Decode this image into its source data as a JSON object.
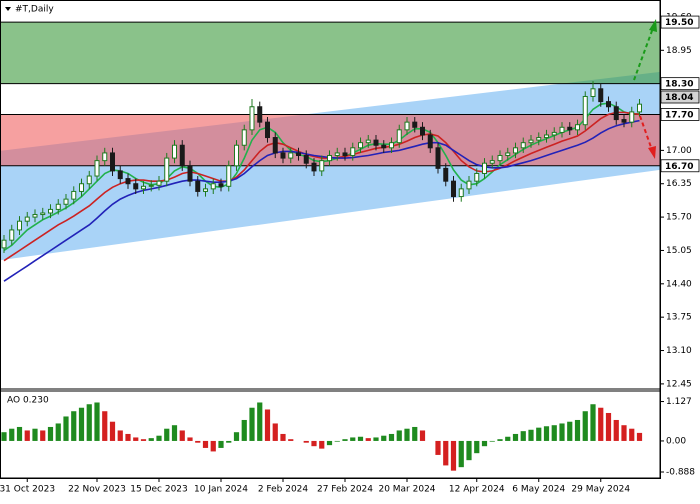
{
  "chart_data": {
    "type": "candlestick",
    "title": "#T,Daily",
    "dates": [
      null,
      null,
      null,
      "31 Oct 2023",
      null,
      null,
      null,
      null,
      null,
      null,
      null,
      null,
      "22 Nov 2023",
      null,
      null,
      null,
      null,
      null,
      null,
      null,
      "15 Dec 2023",
      null,
      null,
      null,
      null,
      null,
      null,
      null,
      "10 Jan 2024",
      null,
      null,
      null,
      null,
      null,
      null,
      null,
      "2 Feb 2024",
      null,
      null,
      null,
      null,
      null,
      null,
      null,
      "27 Feb 2024",
      null,
      null,
      null,
      null,
      null,
      null,
      null,
      "20 Mar 2024",
      null,
      null,
      null,
      null,
      null,
      null,
      null,
      null,
      "12 Apr 2024",
      null,
      null,
      null,
      null,
      null,
      null,
      null,
      "6 May 2024",
      null,
      null,
      null,
      null,
      null,
      null,
      null,
      "29 May 2024",
      null,
      null,
      null,
      null,
      null
    ],
    "ohlc": [
      [
        15.1,
        15.35,
        15.0,
        15.25
      ],
      [
        15.25,
        15.55,
        15.15,
        15.45
      ],
      [
        15.45,
        15.72,
        15.35,
        15.62
      ],
      [
        15.62,
        15.8,
        15.52,
        15.7
      ],
      [
        15.7,
        15.85,
        15.6,
        15.75
      ],
      [
        15.75,
        15.88,
        15.65,
        15.78
      ],
      [
        15.78,
        15.95,
        15.68,
        15.85
      ],
      [
        15.85,
        16.05,
        15.75,
        15.95
      ],
      [
        15.95,
        16.15,
        15.85,
        16.05
      ],
      [
        16.05,
        16.3,
        15.95,
        16.2
      ],
      [
        16.2,
        16.45,
        16.1,
        16.35
      ],
      [
        16.35,
        16.6,
        16.25,
        16.5
      ],
      [
        16.5,
        16.9,
        16.4,
        16.8
      ],
      [
        16.8,
        17.05,
        16.7,
        16.95
      ],
      [
        16.95,
        17.05,
        16.5,
        16.6
      ],
      [
        16.6,
        16.7,
        16.35,
        16.45
      ],
      [
        16.45,
        16.55,
        16.25,
        16.35
      ],
      [
        16.35,
        16.45,
        16.15,
        16.25
      ],
      [
        16.25,
        16.4,
        16.15,
        16.3
      ],
      [
        16.3,
        16.42,
        16.2,
        16.32
      ],
      [
        16.32,
        16.5,
        16.22,
        16.4
      ],
      [
        16.4,
        16.95,
        16.3,
        16.85
      ],
      [
        16.85,
        17.2,
        16.75,
        17.1
      ],
      [
        17.1,
        17.2,
        16.6,
        16.7
      ],
      [
        16.7,
        16.8,
        16.3,
        16.4
      ],
      [
        16.4,
        16.5,
        16.1,
        16.2
      ],
      [
        16.2,
        16.35,
        16.1,
        16.25
      ],
      [
        16.25,
        16.45,
        16.15,
        16.35
      ],
      [
        16.35,
        16.45,
        16.2,
        16.3
      ],
      [
        16.3,
        16.8,
        16.2,
        16.7
      ],
      [
        16.7,
        17.2,
        16.6,
        17.1
      ],
      [
        17.1,
        17.5,
        17.0,
        17.4
      ],
      [
        17.4,
        18.0,
        17.3,
        17.85
      ],
      [
        17.85,
        17.95,
        17.45,
        17.55
      ],
      [
        17.55,
        17.65,
        17.15,
        17.25
      ],
      [
        17.25,
        17.35,
        16.85,
        16.95
      ],
      [
        16.95,
        17.05,
        16.75,
        16.85
      ],
      [
        16.85,
        17.05,
        16.75,
        16.95
      ],
      [
        16.95,
        17.05,
        16.8,
        16.9
      ],
      [
        16.9,
        17.0,
        16.65,
        16.75
      ],
      [
        16.75,
        16.85,
        16.5,
        16.6
      ],
      [
        16.6,
        16.9,
        16.5,
        16.8
      ],
      [
        16.8,
        17.0,
        16.7,
        16.9
      ],
      [
        16.9,
        17.05,
        16.8,
        16.95
      ],
      [
        16.95,
        17.05,
        16.8,
        16.9
      ],
      [
        16.9,
        17.15,
        16.8,
        17.05
      ],
      [
        17.05,
        17.25,
        16.95,
        17.15
      ],
      [
        17.15,
        17.3,
        17.05,
        17.2
      ],
      [
        17.2,
        17.3,
        17.0,
        17.1
      ],
      [
        17.1,
        17.2,
        16.95,
        17.05
      ],
      [
        17.05,
        17.25,
        16.95,
        17.15
      ],
      [
        17.15,
        17.5,
        17.05,
        17.4
      ],
      [
        17.4,
        17.65,
        17.3,
        17.55
      ],
      [
        17.55,
        17.65,
        17.35,
        17.45
      ],
      [
        17.45,
        17.55,
        17.2,
        17.3
      ],
      [
        17.3,
        17.4,
        16.95,
        17.05
      ],
      [
        17.05,
        17.15,
        16.55,
        16.65
      ],
      [
        16.65,
        16.75,
        16.3,
        16.4
      ],
      [
        16.4,
        16.5,
        16.0,
        16.1
      ],
      [
        16.1,
        16.35,
        16.0,
        16.25
      ],
      [
        16.25,
        16.5,
        16.15,
        16.4
      ],
      [
        16.4,
        16.65,
        16.3,
        16.55
      ],
      [
        16.55,
        16.85,
        16.45,
        16.75
      ],
      [
        16.75,
        16.9,
        16.65,
        16.8
      ],
      [
        16.8,
        17.0,
        16.7,
        16.9
      ],
      [
        16.9,
        17.05,
        16.8,
        16.95
      ],
      [
        16.95,
        17.15,
        16.85,
        17.05
      ],
      [
        17.05,
        17.25,
        16.95,
        17.15
      ],
      [
        17.15,
        17.3,
        17.05,
        17.2
      ],
      [
        17.2,
        17.35,
        17.1,
        17.25
      ],
      [
        17.25,
        17.4,
        17.15,
        17.3
      ],
      [
        17.3,
        17.45,
        17.2,
        17.35
      ],
      [
        17.35,
        17.55,
        17.25,
        17.45
      ],
      [
        17.45,
        17.55,
        17.3,
        17.4
      ],
      [
        17.4,
        17.6,
        17.3,
        17.5
      ],
      [
        17.5,
        18.15,
        17.4,
        18.05
      ],
      [
        18.05,
        18.35,
        17.95,
        18.2
      ],
      [
        18.2,
        18.3,
        17.85,
        17.95
      ],
      [
        17.95,
        18.05,
        17.75,
        17.85
      ],
      [
        17.85,
        17.95,
        17.5,
        17.6
      ],
      [
        17.6,
        17.7,
        17.45,
        17.55
      ],
      [
        17.55,
        17.85,
        17.45,
        17.75
      ],
      [
        17.75,
        18.0,
        17.65,
        17.9
      ]
    ],
    "up_color": "#1f7a1f",
    "down_color": "#1a1a1a",
    "series": [
      {
        "color": "#22b14c",
        "values": [
          15.05,
          15.15,
          15.3,
          15.45,
          15.55,
          15.65,
          15.72,
          15.8,
          15.88,
          15.98,
          16.1,
          16.25,
          16.4,
          16.55,
          16.62,
          16.6,
          16.55,
          16.45,
          16.38,
          16.33,
          16.35,
          16.45,
          16.6,
          16.68,
          16.65,
          16.55,
          16.4,
          16.3,
          16.28,
          16.35,
          16.55,
          16.85,
          17.2,
          17.4,
          17.45,
          17.35,
          17.15,
          17.0,
          16.92,
          16.88,
          16.8,
          16.78,
          16.8,
          16.85,
          16.88,
          16.95,
          17.02,
          17.1,
          17.13,
          17.12,
          17.12,
          17.2,
          17.32,
          17.42,
          17.42,
          17.35,
          17.15,
          16.9,
          16.62,
          16.42,
          16.33,
          16.35,
          16.45,
          16.58,
          16.72,
          16.82,
          16.92,
          17.02,
          17.1,
          17.17,
          17.23,
          17.29,
          17.35,
          17.4,
          17.45,
          17.62,
          17.8,
          17.9,
          17.92,
          17.85,
          17.75,
          17.7,
          17.72
        ]
      },
      {
        "color": "#cc2222",
        "values": [
          14.85,
          14.95,
          15.05,
          15.15,
          15.25,
          15.35,
          15.45,
          15.55,
          15.63,
          15.72,
          15.82,
          15.92,
          16.05,
          16.18,
          16.28,
          16.35,
          16.4,
          16.42,
          16.42,
          16.4,
          16.4,
          16.42,
          16.48,
          16.55,
          16.58,
          16.55,
          16.5,
          16.45,
          16.4,
          16.4,
          16.48,
          16.62,
          16.8,
          16.98,
          17.1,
          17.15,
          17.12,
          17.05,
          16.98,
          16.92,
          16.88,
          16.85,
          16.85,
          16.86,
          16.88,
          16.92,
          16.96,
          17.0,
          17.04,
          17.06,
          17.08,
          17.12,
          17.18,
          17.25,
          17.3,
          17.32,
          17.28,
          17.15,
          16.98,
          16.8,
          16.68,
          16.6,
          16.58,
          16.6,
          16.65,
          16.72,
          16.8,
          16.87,
          16.94,
          17.0,
          17.06,
          17.12,
          17.18,
          17.23,
          17.28,
          17.38,
          17.5,
          17.62,
          17.7,
          17.74,
          17.74,
          17.72,
          17.7
        ]
      },
      {
        "color": "#2222b8",
        "values": [
          14.45,
          14.55,
          14.65,
          14.75,
          14.85,
          14.95,
          15.05,
          15.15,
          15.25,
          15.35,
          15.45,
          15.55,
          15.68,
          15.82,
          15.95,
          16.05,
          16.12,
          16.18,
          16.22,
          16.25,
          16.28,
          16.32,
          16.36,
          16.4,
          16.42,
          16.42,
          16.4,
          16.38,
          16.38,
          16.4,
          16.45,
          16.55,
          16.68,
          16.8,
          16.9,
          16.95,
          16.98,
          16.98,
          16.96,
          16.93,
          16.9,
          16.88,
          16.86,
          16.85,
          16.85,
          16.86,
          16.88,
          16.9,
          16.93,
          16.96,
          16.98,
          17.0,
          17.04,
          17.08,
          17.12,
          17.15,
          17.15,
          17.1,
          17.0,
          16.9,
          16.8,
          16.72,
          16.68,
          16.66,
          16.66,
          16.68,
          16.72,
          16.76,
          16.8,
          16.85,
          16.9,
          16.95,
          17.0,
          17.05,
          17.1,
          17.16,
          17.24,
          17.34,
          17.42,
          17.48,
          17.52,
          17.55,
          17.58
        ]
      }
    ],
    "ylim": [
      12.37,
      19.93
    ],
    "yticks": [
      12.45,
      {
        "value": 13.1,
        "label": "13.10"
      },
      13.75,
      {
        "value": 14.4,
        "label": "14.40"
      },
      15.05,
      {
        "value": 15.7,
        "label": "15.70"
      },
      16.35,
      {
        "value": 17,
        "label": "17.00"
      },
      18.95,
      {
        "value": 19.6,
        "label": "19.60"
      }
    ],
    "zones": [
      {
        "from": 18.3,
        "to": 19.5,
        "color": "#3c9a3c"
      },
      {
        "from": 16.7,
        "to": 17.7,
        "color": "#f06060"
      }
    ],
    "channel": {
      "upper": [
        16.99,
        18.53
      ],
      "lower": [
        14.86,
        16.62
      ],
      "color": "#a9d3f7"
    },
    "levels": [
      {
        "value": 19.5,
        "label": "19.50"
      },
      {
        "value": 18.3,
        "label": "18.30"
      },
      {
        "value": 17.7,
        "label": "17.70"
      },
      {
        "value": 16.7,
        "label": "16.70"
      }
    ],
    "current_price": {
      "value": 18.04,
      "label": "18.04"
    },
    "indicator": {
      "type": "bar",
      "label": "AO 0.230",
      "values": [
        0.25,
        0.35,
        0.4,
        0.3,
        0.35,
        0.3,
        0.4,
        0.5,
        0.7,
        0.85,
        0.95,
        1.05,
        1.1,
        0.85,
        0.55,
        0.3,
        0.2,
        0.1,
        0.05,
        0.08,
        0.15,
        0.35,
        0.45,
        0.3,
        0.1,
        -0.05,
        -0.2,
        -0.3,
        -0.2,
        -0.05,
        0.25,
        0.6,
        0.95,
        1.1,
        0.9,
        0.5,
        0.2,
        0.05,
        0.0,
        -0.05,
        -0.15,
        -0.22,
        -0.12,
        -0.02,
        0.05,
        0.1,
        0.12,
        0.08,
        0.1,
        0.15,
        0.2,
        0.3,
        0.35,
        0.4,
        0.3,
        0.0,
        -0.4,
        -0.7,
        -0.85,
        -0.75,
        -0.55,
        -0.35,
        -0.15,
        -0.02,
        0.05,
        0.12,
        0.2,
        0.28,
        0.32,
        0.38,
        0.42,
        0.45,
        0.5,
        0.55,
        0.6,
        0.85,
        1.05,
        0.95,
        0.8,
        0.6,
        0.45,
        0.35,
        0.23
      ],
      "rise_color": "#1f8a1f",
      "fall_color": "#d42020",
      "ylim": [
        -1.06,
        1.4
      ],
      "yticks": [
        -0.888,
        {
          "value": 0,
          "label": "0.00"
        },
        1.127
      ]
    }
  }
}
